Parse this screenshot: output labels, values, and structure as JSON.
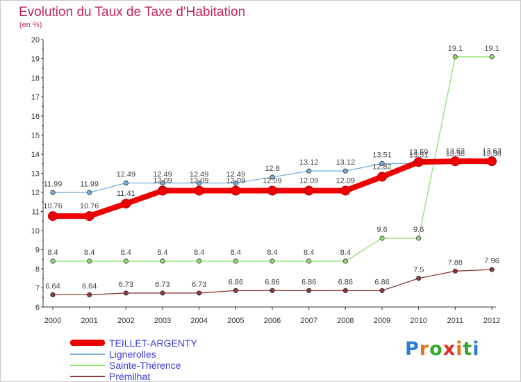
{
  "title": "Evolution du Taux de Taxe d'Habitation",
  "subtitle": "(en %)",
  "logo": {
    "letters": [
      "P",
      "r",
      "o",
      "x",
      "i",
      "t",
      "i"
    ],
    "colors": [
      "#2a7fd4",
      "#e8731a",
      "#3aa62e",
      "#e02a2a",
      "#e8731a",
      "#3aa62e",
      "#2a7fd4"
    ]
  },
  "chart_data": {
    "type": "line",
    "title": "Evolution du Taux de Taxe d'Habitation",
    "ylabel": "(en %)",
    "xlabel": "",
    "x": [
      "2000",
      "2001",
      "2002",
      "2003",
      "2004",
      "2005",
      "2006",
      "2007",
      "2008",
      "2009",
      "2010",
      "2011",
      "2012"
    ],
    "ylim": [
      6,
      20
    ],
    "yticks": [
      "6",
      "7",
      "8",
      "9",
      "10",
      "11",
      "12",
      "13",
      "14",
      "15",
      "16",
      "17",
      "18",
      "19",
      "20"
    ],
    "grid": false,
    "legend_position": "bottom-left",
    "series": [
      {
        "name": "Lignerolles",
        "color": "#7aaedc",
        "style": "thin",
        "values": [
          11.99,
          11.99,
          12.49,
          12.49,
          12.49,
          12.49,
          12.8,
          13.12,
          13.12,
          13.51,
          13.51,
          13.58,
          13.58
        ],
        "labels": [
          "11.99",
          "11.99",
          "12.49",
          "12.49",
          "12.49",
          "12.49",
          "12.8",
          "13.12",
          "13.12",
          "13.51",
          "13.51",
          "13.58",
          "13.58"
        ]
      },
      {
        "name": "Sainte-Thérence",
        "color": "#90e070",
        "style": "thin",
        "values": [
          8.4,
          8.4,
          8.4,
          8.4,
          8.4,
          8.4,
          8.4,
          8.4,
          8.4,
          9.6,
          9.6,
          19.1,
          19.1
        ],
        "labels": [
          "8.4",
          "8.4",
          "8.4",
          "8.4",
          "8.4",
          "8.4",
          "8.4",
          "8.4",
          "8.4",
          "9.6",
          "9.6",
          "19.1",
          "19.1"
        ]
      },
      {
        "name": "Prémilhat",
        "color": "#8a3a3a",
        "style": "thin",
        "values": [
          6.64,
          6.64,
          6.73,
          6.73,
          6.73,
          6.86,
          6.86,
          6.86,
          6.86,
          6.86,
          7.5,
          7.88,
          7.96
        ],
        "labels": [
          "6.64",
          "6.64",
          "6.73",
          "6.73",
          "6.73",
          "6.86",
          "6.86",
          "6.86",
          "6.86",
          "6.86",
          "7.5",
          "7.88",
          "7.96"
        ]
      },
      {
        "name": "TEILLET-ARGENTY",
        "color": "#ee0000",
        "style": "thick",
        "values": [
          10.76,
          10.76,
          11.41,
          12.09,
          12.09,
          12.09,
          12.09,
          12.09,
          12.09,
          12.82,
          13.59,
          13.63,
          13.63
        ],
        "labels": [
          "10.76",
          "10.76",
          "11.41",
          "12.09",
          "12.09",
          "12.09",
          "12.09",
          "12.09",
          "12.09",
          "12.82",
          "13.59",
          "13.63",
          "13.63"
        ]
      }
    ],
    "legend": [
      "TEILLET-ARGENTY",
      "Lignerolles",
      "Sainte-Thérence",
      "Prémilhat"
    ]
  }
}
